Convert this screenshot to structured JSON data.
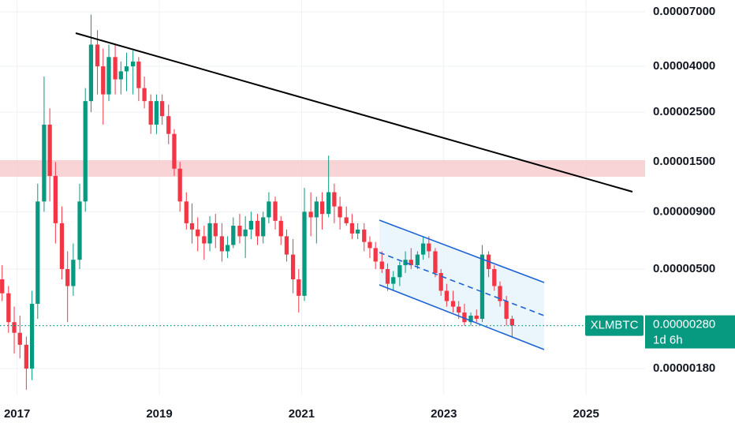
{
  "chart_data": {
    "type": "candlestick",
    "symbol": "XLMBTC",
    "log_scale": true,
    "grid": true,
    "up_color": "#089981",
    "down_color": "#f23645",
    "xlim": [
      2016.76,
      2025.83
    ],
    "xticks": [
      2017,
      2019,
      2021,
      2023,
      2025
    ],
    "ylim": [
      1.38e-06,
      7.9e-05
    ],
    "yticks": [
      {
        "value": 7e-05,
        "label": "0.00007000"
      },
      {
        "value": 4e-05,
        "label": "0.00004000"
      },
      {
        "value": 2.5e-05,
        "label": "0.00002500"
      },
      {
        "value": 1.5e-05,
        "label": "0.00001500"
      },
      {
        "value": 9e-06,
        "label": "0.00000900"
      },
      {
        "value": 5e-06,
        "label": "0.00000500"
      },
      {
        "value": 1.8e-06,
        "label": "0.00000180"
      }
    ],
    "last_price": {
      "value": 2.8e-06,
      "label": "0.00000280"
    },
    "countdown": "1d 6h",
    "x": [
      2016.79,
      2016.88,
      2016.96,
      2017.04,
      2017.13,
      2017.21,
      2017.29,
      2017.38,
      2017.46,
      2017.54,
      2017.63,
      2017.71,
      2017.79,
      2017.88,
      2017.96,
      2018.04,
      2018.13,
      2018.21,
      2018.29,
      2018.38,
      2018.46,
      2018.54,
      2018.63,
      2018.71,
      2018.79,
      2018.88,
      2018.96,
      2019.04,
      2019.13,
      2019.21,
      2019.29,
      2019.38,
      2019.46,
      2019.54,
      2019.63,
      2019.71,
      2019.79,
      2019.88,
      2019.96,
      2020.04,
      2020.13,
      2020.21,
      2020.29,
      2020.38,
      2020.46,
      2020.54,
      2020.63,
      2020.71,
      2020.79,
      2020.88,
      2020.96,
      2021.04,
      2021.13,
      2021.21,
      2021.29,
      2021.38,
      2021.46,
      2021.54,
      2021.63,
      2021.71,
      2021.79,
      2021.88,
      2021.96,
      2022.04,
      2022.13,
      2022.21,
      2022.29,
      2022.38,
      2022.46,
      2022.54,
      2022.63,
      2022.71,
      2022.79,
      2022.88,
      2022.96,
      2023.04,
      2023.13,
      2023.21,
      2023.29,
      2023.38,
      2023.46,
      2023.54,
      2023.63,
      2023.71,
      2023.79,
      2023.88,
      2023.96
    ],
    "open": [
      4.5e-06,
      3.9e-06,
      2.9e-06,
      2.6e-06,
      2.3e-06,
      1.8e-06,
      3.5e-06,
      1e-05,
      2.2e-05,
      1.3e-05,
      8e-06,
      5e-06,
      4.2e-06,
      5.5e-06,
      1e-05,
      2.8e-05,
      5e-05,
      4e-05,
      3e-05,
      4.4e-05,
      3.5e-05,
      3.8e-05,
      4e-05,
      4.2e-05,
      3.2e-05,
      2.8e-05,
      2.2e-05,
      2.8e-05,
      2.4e-05,
      2e-05,
      1.4e-05,
      1e-05,
      8e-06,
      7.5e-06,
      7e-06,
      6.5e-06,
      8e-06,
      7e-06,
      6e-06,
      6.4e-06,
      7.8e-06,
      7e-06,
      7.5e-06,
      8.2e-06,
      7e-06,
      8.5e-06,
      1e-05,
      8.2e-06,
      7e-06,
      5.8e-06,
      4.5e-06,
      3.8e-06,
      9e-06,
      8.5e-06,
      1e-05,
      8.8e-06,
      1.1e-05,
      9.5e-06,
      8.5e-06,
      8e-06,
      7.2e-06,
      7.5e-06,
      6.6e-06,
      6.2e-06,
      5.4e-06,
      5e-06,
      4.3e-06,
      4.6e-06,
      5.2e-06,
      5.5e-06,
      5.2e-06,
      5.8e-06,
      6.5e-06,
      6e-06,
      4.8e-06,
      4e-06,
      3.6e-06,
      3.4e-06,
      3.2e-06,
      2.9e-06,
      3.1e-06,
      3e-06,
      5.8e-06,
      5e-06,
      4.2e-06,
      3.6e-06,
      3e-06
    ],
    "high": [
      5.2e-06,
      4.2e-06,
      3.4e-06,
      3.1e-06,
      2.5e-06,
      4e-06,
      1.2e-05,
      3.6e-05,
      2.6e-05,
      1.5e-05,
      9.5e-06,
      6e-06,
      6.5e-06,
      1.2e-05,
      3.2e-05,
      6.8e-05,
      5.8e-05,
      4.8e-05,
      5e-05,
      5e-05,
      4.2e-05,
      4.6e-05,
      4.7e-05,
      4.4e-05,
      3.6e-05,
      3e-05,
      3e-05,
      3e-05,
      2.7e-05,
      2.1e-05,
      1.5e-05,
      1.1e-05,
      9.8e-06,
      8.5e-06,
      7.8e-06,
      8.6e-06,
      8.8e-06,
      8e-06,
      7e-06,
      8.5e-06,
      8.8e-06,
      8.6e-06,
      9e-06,
      8.8e-06,
      9e-06,
      1.1e-05,
      1.05e-05,
      8.6e-06,
      7.5e-06,
      6.8e-06,
      5e-06,
      1.15e-05,
      1.1e-05,
      1.05e-05,
      1.1e-05,
      1.6e-05,
      1.2e-05,
      1.05e-05,
      9.5e-06,
      8.8e-06,
      8e-06,
      8e-06,
      7e-06,
      6.6e-06,
      6e-06,
      5.3e-06,
      4.9e-06,
      5.4e-06,
      6e-06,
      6.2e-06,
      6e-06,
      7e-06,
      7e-06,
      6.2e-06,
      5e-06,
      4.3e-06,
      4e-06,
      3.6e-06,
      3.5e-06,
      3.2e-06,
      3.3e-06,
      6.4e-06,
      6e-06,
      5.2e-06,
      4.4e-06,
      3.8e-06,
      3.1e-06
    ],
    "low": [
      3.6e-06,
      2.6e-06,
      2.1e-06,
      2e-06,
      1.45e-06,
      1.6e-06,
      3e-06,
      9e-06,
      1e-05,
      6.5e-06,
      4.5e-06,
      2.9e-06,
      3.8e-06,
      5e-06,
      9e-06,
      2.5e-05,
      3e-05,
      2.2e-05,
      2.8e-05,
      3e-05,
      3e-05,
      3.1e-05,
      3e-05,
      2.8e-05,
      2.6e-05,
      2e-05,
      2e-05,
      2.2e-05,
      1.8e-05,
      1.3e-05,
      9e-06,
      7.5e-06,
      6.5e-06,
      6e-06,
      5.5e-06,
      6e-06,
      6.2e-06,
      5.4e-06,
      5.6e-06,
      6.2e-06,
      6.5e-06,
      5.6e-06,
      6.8e-06,
      6.4e-06,
      6.5e-06,
      8e-06,
      7.5e-06,
      6.4e-06,
      5.4e-06,
      3.9e-06,
      3.2e-06,
      3.6e-06,
      7e-06,
      6.5e-06,
      7.5e-06,
      8.5e-06,
      8e-06,
      7.5e-06,
      7.8e-06,
      6.8e-06,
      6.8e-06,
      6e-06,
      5.6e-06,
      5e-06,
      4.8e-06,
      4e-06,
      4e-06,
      4.2e-06,
      4.8e-06,
      5e-06,
      5e-06,
      5.5e-06,
      5.6e-06,
      4.6e-06,
      3.8e-06,
      3.4e-06,
      3.2e-06,
      3e-06,
      2.8e-06,
      2.8e-06,
      2.9e-06,
      2.9e-06,
      4.6e-06,
      4e-06,
      3.4e-06,
      2.8e-06,
      2.5e-06
    ],
    "close": [
      3.9e-06,
      2.9e-06,
      2.6e-06,
      2.3e-06,
      1.8e-06,
      3.5e-06,
      1e-05,
      2.2e-05,
      1.3e-05,
      8e-06,
      5e-06,
      4.2e-06,
      5.5e-06,
      1e-05,
      2.8e-05,
      5e-05,
      4e-05,
      3e-05,
      4.4e-05,
      3.5e-05,
      3.8e-05,
      4e-05,
      4.2e-05,
      3.2e-05,
      2.8e-05,
      2.2e-05,
      2.8e-05,
      2.4e-05,
      2e-05,
      1.4e-05,
      1e-05,
      8e-06,
      7.5e-06,
      7e-06,
      6.5e-06,
      8e-06,
      7e-06,
      6e-06,
      6.4e-06,
      7.8e-06,
      7e-06,
      7.5e-06,
      8.2e-06,
      7e-06,
      8.5e-06,
      1e-05,
      8.2e-06,
      7e-06,
      5.8e-06,
      4.5e-06,
      3.8e-06,
      9e-06,
      8.5e-06,
      1e-05,
      8.8e-06,
      1.1e-05,
      9.5e-06,
      8.5e-06,
      8e-06,
      7.2e-06,
      7.5e-06,
      6.6e-06,
      6.2e-06,
      5.4e-06,
      5e-06,
      4.3e-06,
      4.6e-06,
      5.2e-06,
      5.5e-06,
      5.2e-06,
      5.8e-06,
      6.5e-06,
      6e-06,
      4.8e-06,
      4e-06,
      3.6e-06,
      3.4e-06,
      3.2e-06,
      2.9e-06,
      3.1e-06,
      3e-06,
      5.8e-06,
      5e-06,
      4.2e-06,
      3.6e-06,
      3e-06,
      2.8e-06
    ]
  }
}
